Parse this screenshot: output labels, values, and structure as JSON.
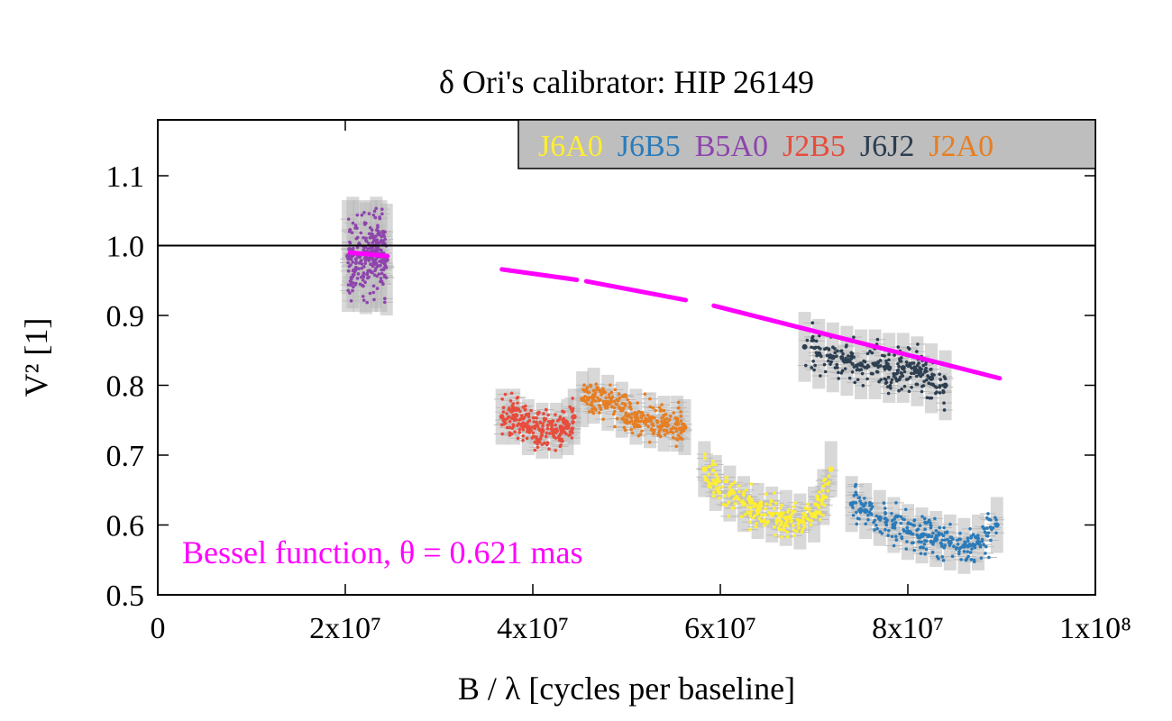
{
  "chart_data": {
    "type": "scatter",
    "title": "δ Ori's calibrator: HIP 26149",
    "xlabel": "B / λ [cycles per baseline]",
    "ylabel": "V² [1]",
    "xlim": [
      0,
      100000000
    ],
    "ylim": [
      0.5,
      1.18
    ],
    "x_ticks": [
      {
        "value": 0,
        "label": "0"
      },
      {
        "value": 20000000,
        "label": "2x10⁷"
      },
      {
        "value": 40000000,
        "label": "4x10⁷"
      },
      {
        "value": 60000000,
        "label": "6x10⁷"
      },
      {
        "value": 80000000,
        "label": "8x10⁷"
      },
      {
        "value": 100000000,
        "label": "1x10⁸"
      }
    ],
    "y_ticks": [
      {
        "value": 0.5,
        "label": "0.5"
      },
      {
        "value": 0.6,
        "label": "0.6"
      },
      {
        "value": 0.7,
        "label": "0.7"
      },
      {
        "value": 0.8,
        "label": "0.8"
      },
      {
        "value": 0.9,
        "label": "0.9"
      },
      {
        "value": 1.0,
        "label": "1.0"
      },
      {
        "value": 1.1,
        "label": "1.1"
      }
    ],
    "reference_line": {
      "y": 1.0,
      "color": "#000000"
    },
    "legend": {
      "position": "top-right",
      "background": "#bebebe",
      "entries": [
        {
          "label": "J6A0",
          "color": "#ffee33"
        },
        {
          "label": "J6B5",
          "color": "#2b7bb9"
        },
        {
          "label": "B5A0",
          "color": "#8e44ad"
        },
        {
          "label": "J2B5",
          "color": "#e74c3c"
        },
        {
          "label": "J6J2",
          "color": "#2c3e50"
        },
        {
          "label": "J2A0",
          "color": "#e67e22"
        }
      ]
    },
    "series": [
      {
        "name": "B5A0",
        "color": "#8e44ad",
        "x": [
          20300000,
          20800000,
          21500000,
          22200000,
          22800000,
          23300000,
          23800000,
          24400000
        ],
        "y": [
          0.985,
          0.99,
          0.985,
          0.982,
          0.985,
          0.99,
          0.985,
          0.98
        ],
        "y_err": 0.04
      },
      {
        "name": "J2B5",
        "color": "#e74c3c",
        "x": [
          36700000,
          38000000,
          39500000,
          41000000,
          42500000,
          43700000,
          44400000
        ],
        "y": [
          0.755,
          0.755,
          0.74,
          0.735,
          0.735,
          0.74,
          0.755
        ],
        "y_err": 0.02
      },
      {
        "name": "J2A0",
        "color": "#e67e22",
        "x": [
          45300000,
          46500000,
          48000000,
          49500000,
          51000000,
          52500000,
          54000000,
          55400000,
          56200000
        ],
        "y": [
          0.78,
          0.785,
          0.775,
          0.765,
          0.755,
          0.75,
          0.745,
          0.745,
          0.74
        ],
        "y_err": 0.02
      },
      {
        "name": "J6A0",
        "color": "#ffee33",
        "x": [
          58300000,
          59500000,
          61000000,
          62500000,
          64000000,
          65500000,
          67000000,
          68500000,
          70000000,
          71000000,
          71800000
        ],
        "y": [
          0.68,
          0.66,
          0.645,
          0.63,
          0.62,
          0.615,
          0.61,
          0.605,
          0.615,
          0.64,
          0.68
        ],
        "y_err": 0.02
      },
      {
        "name": "J6B5",
        "color": "#2b7bb9",
        "x": [
          74000000,
          75500000,
          77000000,
          78500000,
          80000000,
          81500000,
          83000000,
          84500000,
          86000000,
          87500000,
          89500000
        ],
        "y": [
          0.63,
          0.62,
          0.61,
          0.6,
          0.59,
          0.585,
          0.58,
          0.575,
          0.57,
          0.575,
          0.6
        ],
        "y_err": 0.02
      },
      {
        "name": "J6J2",
        "color": "#2c3e50",
        "x": [
          69000000,
          70500000,
          72000000,
          73500000,
          75000000,
          76500000,
          78000000,
          79500000,
          81000000,
          82500000,
          84000000
        ],
        "y": [
          0.855,
          0.845,
          0.84,
          0.835,
          0.83,
          0.83,
          0.825,
          0.825,
          0.82,
          0.81,
          0.8
        ],
        "y_err": 0.025
      }
    ],
    "model": {
      "color": "#ff00ff",
      "segments": [
        [
          20500000,
          24500000
        ],
        [
          36700000,
          44700000
        ],
        [
          45700000,
          56300000
        ],
        [
          59300000,
          89800000
        ]
      ],
      "points": [
        {
          "x": 20500000,
          "y": 0.99
        },
        {
          "x": 24500000,
          "y": 0.985
        },
        {
          "x": 36700000,
          "y": 0.966
        },
        {
          "x": 44700000,
          "y": 0.951
        },
        {
          "x": 45700000,
          "y": 0.949
        },
        {
          "x": 56300000,
          "y": 0.922
        },
        {
          "x": 59300000,
          "y": 0.914
        },
        {
          "x": 70000000,
          "y": 0.88
        },
        {
          "x": 80000000,
          "y": 0.846
        },
        {
          "x": 89800000,
          "y": 0.81
        }
      ]
    },
    "annotation": {
      "label": "Bessel function, θ = 0.621 mas",
      "color": "#ff00ff"
    }
  }
}
